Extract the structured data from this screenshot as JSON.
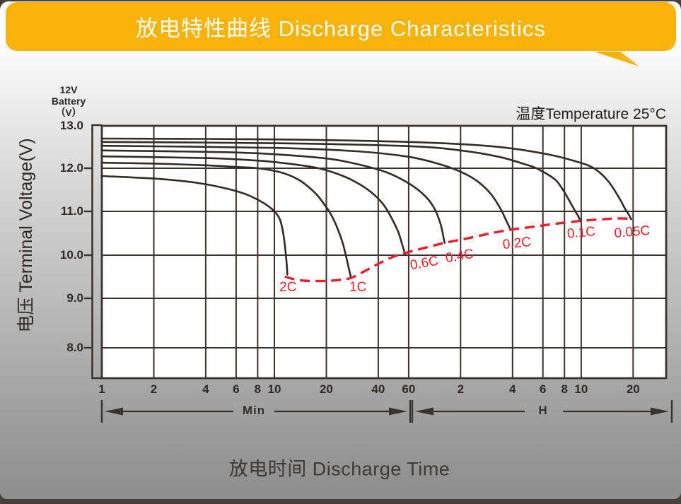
{
  "banner": {
    "title": "放电特性曲线 Discharge Characteristics",
    "color": "#F8B30A"
  },
  "annotations": {
    "temperature": "温度Temperature 25°C"
  },
  "y_axis": {
    "unit_lines": [
      "12V",
      "Battery",
      "（V）"
    ],
    "title": "电压 Terminal Voltage(V)"
  },
  "x_axis": {
    "title": "放电时间 Discharge Time",
    "min_label": "Min",
    "hour_label": "H"
  },
  "colors": {
    "banner": "#F8B30A",
    "curve": "#332B28",
    "grid": "#3A3431",
    "envelope_red": "#E8202A",
    "plot_background": "#FEFEFE"
  },
  "chart_data": {
    "type": "line",
    "title": "放电特性曲线 Discharge Characteristics",
    "xlabel": "放电时间 Discharge Time",
    "ylabel": "电压 Terminal Voltage(V)",
    "x_scale": "log-time-minutes",
    "x_range_minutes": [
      1,
      1860
    ],
    "y_range": [
      7.1,
      13.0
    ],
    "grid": true,
    "x_unit_sections": [
      {
        "label": "Min",
        "from_minutes": 1,
        "to_minutes": 60
      },
      {
        "label": "H",
        "from_minutes": 60,
        "to_minutes": 1860
      }
    ],
    "x_ticks_minutes": [
      {
        "t": 1,
        "label": "1"
      },
      {
        "t": 2,
        "label": "2"
      },
      {
        "t": 4,
        "label": "4"
      },
      {
        "t": 6,
        "label": "6"
      },
      {
        "t": 8,
        "label": "8"
      },
      {
        "t": 10,
        "label": "10"
      },
      {
        "t": 20,
        "label": "20"
      },
      {
        "t": 40,
        "label": "40"
      },
      {
        "t": 60,
        "label": "60"
      }
    ],
    "x_ticks_hours": [
      {
        "t": 120,
        "label": "2"
      },
      {
        "t": 240,
        "label": "4"
      },
      {
        "t": 360,
        "label": "6"
      },
      {
        "t": 480,
        "label": "8"
      },
      {
        "t": 600,
        "label": "10"
      },
      {
        "t": 1200,
        "label": "20"
      }
    ],
    "y_ticks": [
      {
        "v": 13,
        "label": "13.0"
      },
      {
        "v": 12,
        "label": "12.0"
      },
      {
        "v": 11,
        "label": "11.0"
      },
      {
        "v": 10,
        "label": "10.0"
      },
      {
        "v": 9,
        "label": "9.0"
      },
      {
        "v": 8,
        "label": "8.0"
      }
    ],
    "series": [
      {
        "name": "2C",
        "label_rotation": 0,
        "label_anchor": [
          12,
          9.25
        ],
        "points": [
          [
            1,
            11.82
          ],
          [
            2,
            11.76
          ],
          [
            3,
            11.7
          ],
          [
            4,
            11.63
          ],
          [
            5,
            11.55
          ],
          [
            6,
            11.47
          ],
          [
            7,
            11.38
          ],
          [
            8,
            11.27
          ],
          [
            9,
            11.15
          ],
          [
            10,
            11.0
          ],
          [
            10.8,
            10.8
          ],
          [
            11.3,
            10.45
          ],
          [
            11.7,
            9.95
          ],
          [
            11.9,
            9.55
          ]
        ]
      },
      {
        "name": "1C",
        "label_rotation": 0,
        "label_anchor": [
          30.5,
          9.25
        ],
        "points": [
          [
            1,
            12.13
          ],
          [
            2,
            12.11
          ],
          [
            4,
            12.07
          ],
          [
            6,
            12.03
          ],
          [
            8,
            12.0
          ],
          [
            11,
            11.9
          ],
          [
            14,
            11.72
          ],
          [
            17,
            11.45
          ],
          [
            19,
            11.22
          ],
          [
            21,
            10.97
          ],
          [
            23,
            10.65
          ],
          [
            25,
            10.25
          ],
          [
            26.8,
            9.75
          ],
          [
            27.7,
            9.5
          ]
        ]
      },
      {
        "name": "0.6C",
        "label_rotation": -10,
        "label_anchor": [
          74,
          9.8
        ],
        "points": [
          [
            1,
            12.28
          ],
          [
            4,
            12.24
          ],
          [
            8,
            12.18
          ],
          [
            12,
            12.11
          ],
          [
            18,
            12.0
          ],
          [
            25,
            11.82
          ],
          [
            32,
            11.6
          ],
          [
            38,
            11.38
          ],
          [
            43,
            11.15
          ],
          [
            47,
            10.9
          ],
          [
            52,
            10.55
          ],
          [
            55,
            10.25
          ],
          [
            57.5,
            10.0
          ]
        ]
      },
      {
        "name": "0.4C",
        "label_rotation": -10,
        "label_anchor": [
          118,
          9.97
        ],
        "points": [
          [
            1,
            12.42
          ],
          [
            5,
            12.38
          ],
          [
            10,
            12.33
          ],
          [
            20,
            12.23
          ],
          [
            30,
            12.1
          ],
          [
            45,
            11.9
          ],
          [
            60,
            11.65
          ],
          [
            75,
            11.35
          ],
          [
            85,
            11.05
          ],
          [
            92,
            10.7
          ],
          [
            97,
            10.28
          ]
        ]
      },
      {
        "name": "0.2C",
        "label_rotation": -6,
        "label_anchor": [
          255,
          10.26
        ],
        "points": [
          [
            1,
            12.53
          ],
          [
            10,
            12.48
          ],
          [
            30,
            12.4
          ],
          [
            60,
            12.27
          ],
          [
            90,
            12.1
          ],
          [
            120,
            11.92
          ],
          [
            150,
            11.7
          ],
          [
            180,
            11.4
          ],
          [
            205,
            11.05
          ],
          [
            220,
            10.8
          ],
          [
            234,
            10.58
          ]
        ]
      },
      {
        "name": "0.1C",
        "label_rotation": -5,
        "label_anchor": [
          600,
          10.5
        ],
        "points": [
          [
            1,
            12.62
          ],
          [
            10,
            12.59
          ],
          [
            60,
            12.52
          ],
          [
            120,
            12.42
          ],
          [
            200,
            12.27
          ],
          [
            280,
            12.1
          ],
          [
            330,
            12.0
          ],
          [
            420,
            11.75
          ],
          [
            470,
            11.5
          ],
          [
            520,
            11.2
          ],
          [
            555,
            11.0
          ],
          [
            575,
            10.9
          ],
          [
            590,
            10.8
          ]
        ]
      },
      {
        "name": "0.05C",
        "label_rotation": -5,
        "label_anchor": [
          1190,
          10.52
        ],
        "points": [
          [
            1,
            12.7
          ],
          [
            10,
            12.68
          ],
          [
            60,
            12.62
          ],
          [
            180,
            12.52
          ],
          [
            360,
            12.35
          ],
          [
            540,
            12.18
          ],
          [
            710,
            12.0
          ],
          [
            860,
            11.7
          ],
          [
            1000,
            11.3
          ],
          [
            1080,
            11.05
          ],
          [
            1130,
            10.93
          ],
          [
            1170,
            10.82
          ]
        ]
      }
    ],
    "envelope": {
      "name": "end-of-discharge-envelope",
      "style": "dashed",
      "points": [
        [
          11.5,
          9.5
        ],
        [
          14,
          9.42
        ],
        [
          18,
          9.4
        ],
        [
          23,
          9.42
        ],
        [
          27.7,
          9.47
        ],
        [
          33,
          9.62
        ],
        [
          40,
          9.8
        ],
        [
          48,
          9.95
        ],
        [
          57.5,
          10.05
        ],
        [
          70,
          10.14
        ],
        [
          97,
          10.28
        ],
        [
          130,
          10.38
        ],
        [
          180,
          10.5
        ],
        [
          234,
          10.58
        ],
        [
          320,
          10.65
        ],
        [
          430,
          10.72
        ],
        [
          590,
          10.78
        ],
        [
          800,
          10.82
        ],
        [
          1000,
          10.84
        ],
        [
          1170,
          10.83
        ]
      ]
    }
  }
}
